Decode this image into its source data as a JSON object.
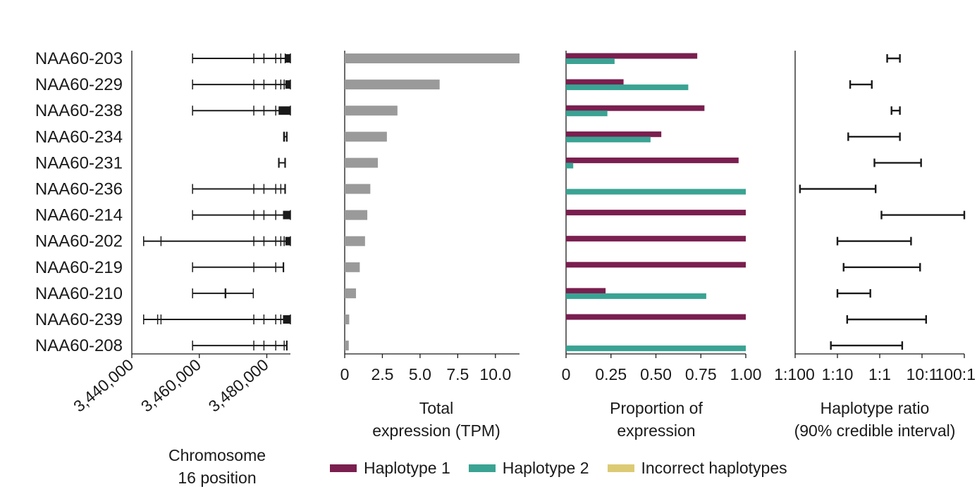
{
  "colors": {
    "haplotype1": "#7a1f4f",
    "haplotype2": "#3aa393",
    "incorrect": "#dccb74",
    "total": "#9a9a9a",
    "ink": "#1a1a1a"
  },
  "legend": [
    {
      "label": "Haplotype 1",
      "color": "#7a1f4f"
    },
    {
      "label": "Haplotype 2",
      "color": "#3aa393"
    },
    {
      "label": "Incorrect haplotypes",
      "color": "#dccb74"
    }
  ],
  "chart_data": [
    {
      "type": "gene-structure",
      "xlabel": [
        "Chromosome",
        "16 position"
      ],
      "xlim": [
        3440000,
        3487000
      ],
      "ticks": [
        3440000,
        3460000,
        3480000
      ],
      "tick_labels": [
        "3,440,000",
        "3,460,000",
        "3,480,000"
      ],
      "transcripts": [
        {
          "name": "NAA60-203",
          "start": 3458000,
          "end": 3487000,
          "exons": [
            [
              3476000,
              3476300
            ],
            [
              3479000,
              3479300
            ],
            [
              3482500,
              3482800
            ],
            [
              3484000,
              3484300
            ],
            [
              3485300,
              3485600
            ],
            [
              3485500,
              3487000
            ]
          ]
        },
        {
          "name": "NAA60-229",
          "start": 3458000,
          "end": 3487000,
          "exons": [
            [
              3476000,
              3476300
            ],
            [
              3479000,
              3479300
            ],
            [
              3482500,
              3482800
            ],
            [
              3484000,
              3484300
            ],
            [
              3485000,
              3485300
            ],
            [
              3485500,
              3487000
            ]
          ]
        },
        {
          "name": "NAA60-238",
          "start": 3458000,
          "end": 3487000,
          "exons": [
            [
              3476000,
              3476300
            ],
            [
              3479000,
              3479300
            ],
            [
              3482500,
              3482800
            ],
            [
              3483500,
              3487000
            ]
          ]
        },
        {
          "name": "NAA60-234",
          "start": 3485000,
          "end": 3486000,
          "exons": [
            [
              3485100,
              3485400
            ],
            [
              3485700,
              3486000
            ]
          ]
        },
        {
          "name": "NAA60-231",
          "start": 3483500,
          "end": 3485500,
          "exons": [
            [
              3483500,
              3483800
            ],
            [
              3485200,
              3485500
            ]
          ]
        },
        {
          "name": "NAA60-236",
          "start": 3458000,
          "end": 3485500,
          "exons": [
            [
              3476000,
              3476300
            ],
            [
              3479000,
              3479300
            ],
            [
              3482500,
              3482800
            ],
            [
              3484000,
              3484300
            ],
            [
              3485200,
              3485500
            ]
          ]
        },
        {
          "name": "NAA60-214",
          "start": 3458000,
          "end": 3487000,
          "exons": [
            [
              3476000,
              3476300
            ],
            [
              3479000,
              3479300
            ],
            [
              3482500,
              3482800
            ],
            [
              3484800,
              3487000
            ]
          ]
        },
        {
          "name": "NAA60-202",
          "start": 3443500,
          "end": 3487000,
          "exons": [
            [
              3448500,
              3448800
            ],
            [
              3476000,
              3476300
            ],
            [
              3479000,
              3479300
            ],
            [
              3482500,
              3482800
            ],
            [
              3484000,
              3484300
            ],
            [
              3485000,
              3485300
            ],
            [
              3485500,
              3487000
            ]
          ]
        },
        {
          "name": "NAA60-219",
          "start": 3458000,
          "end": 3485000,
          "exons": [
            [
              3476000,
              3476300
            ],
            [
              3482500,
              3482800
            ],
            [
              3484700,
              3485000
            ]
          ]
        },
        {
          "name": "NAA60-210",
          "start": 3458000,
          "end": 3476000,
          "exons": [
            [
              3467500,
              3468000
            ]
          ]
        },
        {
          "name": "NAA60-239",
          "start": 3443500,
          "end": 3487000,
          "exons": [
            [
              3447500,
              3447800
            ],
            [
              3448500,
              3448800
            ],
            [
              3476000,
              3476300
            ],
            [
              3479000,
              3479300
            ],
            [
              3482500,
              3482800
            ],
            [
              3484000,
              3484300
            ],
            [
              3484800,
              3487000
            ]
          ]
        },
        {
          "name": "NAA60-208",
          "start": 3458000,
          "end": 3486000,
          "exons": [
            [
              3476000,
              3476300
            ],
            [
              3479000,
              3479300
            ],
            [
              3482500,
              3482800
            ],
            [
              3485000,
              3485300
            ],
            [
              3485700,
              3486000
            ]
          ]
        }
      ]
    },
    {
      "type": "bar",
      "xlabel": [
        "Total",
        "expression (TPM)"
      ],
      "xlim": [
        0,
        11.6
      ],
      "ticks": [
        0,
        2.5,
        5.0,
        7.5,
        10.0
      ],
      "tick_labels": [
        "0",
        "2.5",
        "5.0",
        "7.5",
        "10.0"
      ],
      "categories": [
        "NAA60-203",
        "NAA60-229",
        "NAA60-238",
        "NAA60-234",
        "NAA60-231",
        "NAA60-236",
        "NAA60-214",
        "NAA60-202",
        "NAA60-219",
        "NAA60-210",
        "NAA60-239",
        "NAA60-208"
      ],
      "values": [
        11.6,
        6.3,
        3.5,
        2.8,
        2.2,
        1.7,
        1.5,
        1.35,
        1.0,
        0.75,
        0.3,
        0.27
      ]
    },
    {
      "type": "bar",
      "xlabel": [
        "Proportion of",
        "expression"
      ],
      "xlim": [
        0,
        1
      ],
      "ticks": [
        0,
        0.25,
        0.5,
        0.75,
        1.0
      ],
      "tick_labels": [
        "0",
        "0.25",
        "0.50",
        "0.75",
        "1.00"
      ],
      "categories": [
        "NAA60-203",
        "NAA60-229",
        "NAA60-238",
        "NAA60-234",
        "NAA60-231",
        "NAA60-236",
        "NAA60-214",
        "NAA60-202",
        "NAA60-219",
        "NAA60-210",
        "NAA60-239",
        "NAA60-208"
      ],
      "series": [
        {
          "name": "Haplotype 1",
          "values": [
            0.73,
            0.32,
            0.77,
            0.53,
            0.96,
            0.0,
            1.0,
            1.0,
            1.0,
            0.22,
            1.0,
            0.0
          ]
        },
        {
          "name": "Haplotype 2",
          "values": [
            0.27,
            0.68,
            0.23,
            0.47,
            0.04,
            1.0,
            0.0,
            0.0,
            0.0,
            0.78,
            0.0,
            1.0
          ]
        },
        {
          "name": "Incorrect haplotypes",
          "values": [
            0,
            0,
            0,
            0,
            0,
            0,
            0,
            0,
            0,
            0,
            0,
            0
          ]
        }
      ]
    },
    {
      "type": "interval",
      "xlabel": [
        "Haplotype ratio",
        "(90% credible interval)"
      ],
      "log_scale": true,
      "xlim": [
        0.01,
        100
      ],
      "ticks": [
        0.01,
        0.1,
        1,
        10,
        100
      ],
      "tick_labels": [
        "1:100",
        "1:10",
        "1:1",
        "10:1",
        "100:1"
      ],
      "categories": [
        "NAA60-203",
        "NAA60-229",
        "NAA60-238",
        "NAA60-234",
        "NAA60-231",
        "NAA60-236",
        "NAA60-214",
        "NAA60-202",
        "NAA60-219",
        "NAA60-210",
        "NAA60-239",
        "NAA60-208"
      ],
      "intervals": [
        [
          1.5,
          3.0
        ],
        [
          0.2,
          0.65
        ],
        [
          1.9,
          3.0
        ],
        [
          0.18,
          3.0
        ],
        [
          0.75,
          9.5
        ],
        [
          0.013,
          0.8
        ],
        [
          1.1,
          110
        ],
        [
          0.1,
          5.5
        ],
        [
          0.14,
          9.0
        ],
        [
          0.1,
          0.6
        ],
        [
          0.17,
          12.5
        ],
        [
          0.07,
          3.4
        ]
      ]
    }
  ]
}
